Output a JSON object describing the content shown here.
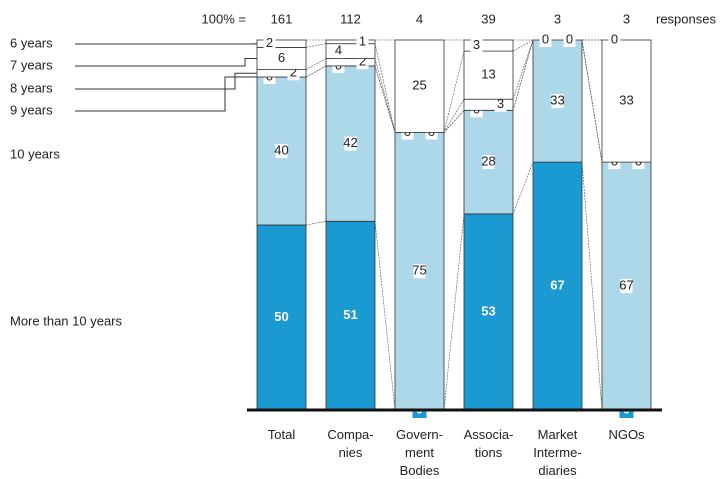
{
  "chart_data": {
    "type": "stacked-bar-100",
    "total_prefix": "100% =",
    "total_suffix": "responses",
    "totals": [
      161,
      112,
      4,
      39,
      3,
      3
    ],
    "categories": [
      [
        "Total"
      ],
      [
        "Compa-",
        "nies"
      ],
      [
        "Govern-",
        "ment",
        "Bodies"
      ],
      [
        "Associa-",
        "tions"
      ],
      [
        "Market",
        "Interme-",
        "diaries"
      ],
      [
        "NGOs"
      ]
    ],
    "ylim": [
      0,
      100
    ],
    "series": [
      {
        "name": "More than 10 years",
        "color": "#1a9ad0",
        "values": [
          50,
          51,
          0,
          53,
          67,
          0
        ]
      },
      {
        "name": "10 years",
        "color": "#add8ea",
        "values": [
          40,
          42,
          75,
          28,
          33,
          67
        ]
      },
      {
        "name": "9 years",
        "color": "#ffffff",
        "values": [
          0,
          0,
          0,
          0,
          0,
          0
        ]
      },
      {
        "name": "8 years",
        "color": "#ffffff",
        "values": [
          2,
          2,
          0,
          3,
          0,
          0
        ]
      },
      {
        "name": "7 years",
        "color": "#ffffff",
        "values": [
          6,
          4,
          0,
          13,
          0,
          33
        ]
      },
      {
        "name": "6 years",
        "color": "#ffffff",
        "values": [
          2,
          1,
          25,
          3,
          0,
          0
        ]
      }
    ]
  }
}
